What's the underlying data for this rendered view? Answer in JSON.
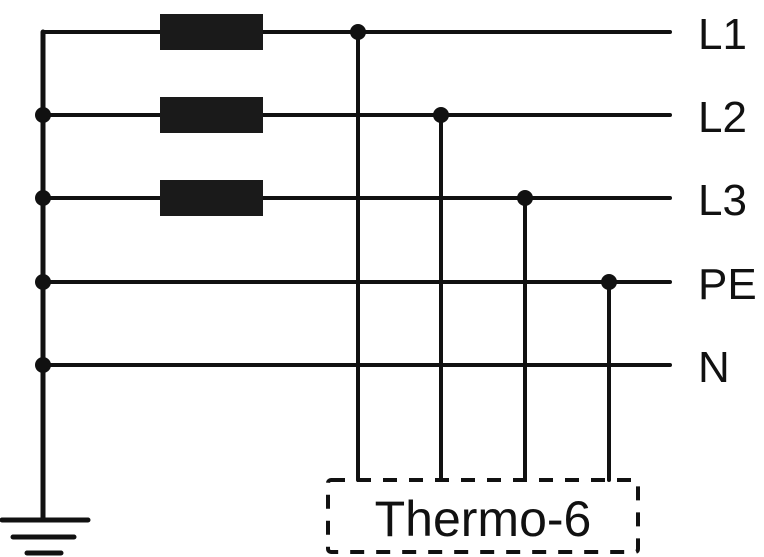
{
  "lines": [
    {
      "label": "L1",
      "has_resistor": true,
      "tap": true
    },
    {
      "label": "L2",
      "has_resistor": true,
      "tap": true
    },
    {
      "label": "L3",
      "has_resistor": true,
      "tap": true
    },
    {
      "label": "PE",
      "has_resistor": false,
      "tap": true
    },
    {
      "label": "N",
      "has_resistor": false,
      "tap": false
    }
  ],
  "device": {
    "label": "Thermo-6"
  },
  "colors": {
    "stroke": "#111111"
  }
}
